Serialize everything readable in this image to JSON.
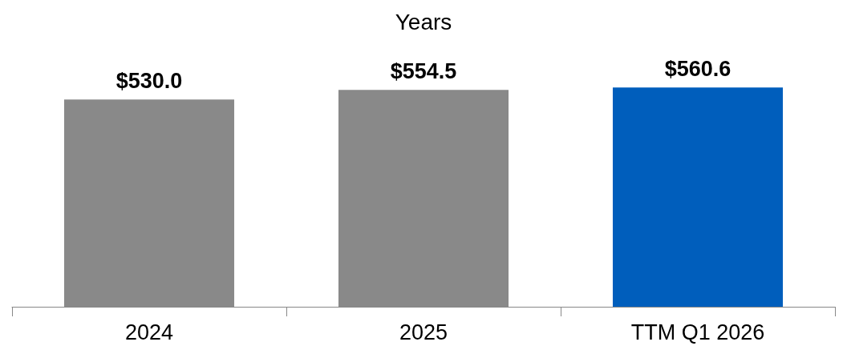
{
  "chart_data": {
    "type": "bar",
    "title": "Years",
    "categories": [
      "2024",
      "2025",
      "TTM Q1 2026"
    ],
    "values": [
      530.0,
      554.5,
      560.6
    ],
    "colors": [
      "#898989",
      "#898989",
      "#005ebc"
    ],
    "value_labels": [
      "$530.0",
      "$554.5",
      "$560.6"
    ],
    "tick_labels": "x",
    "grid": false
  }
}
